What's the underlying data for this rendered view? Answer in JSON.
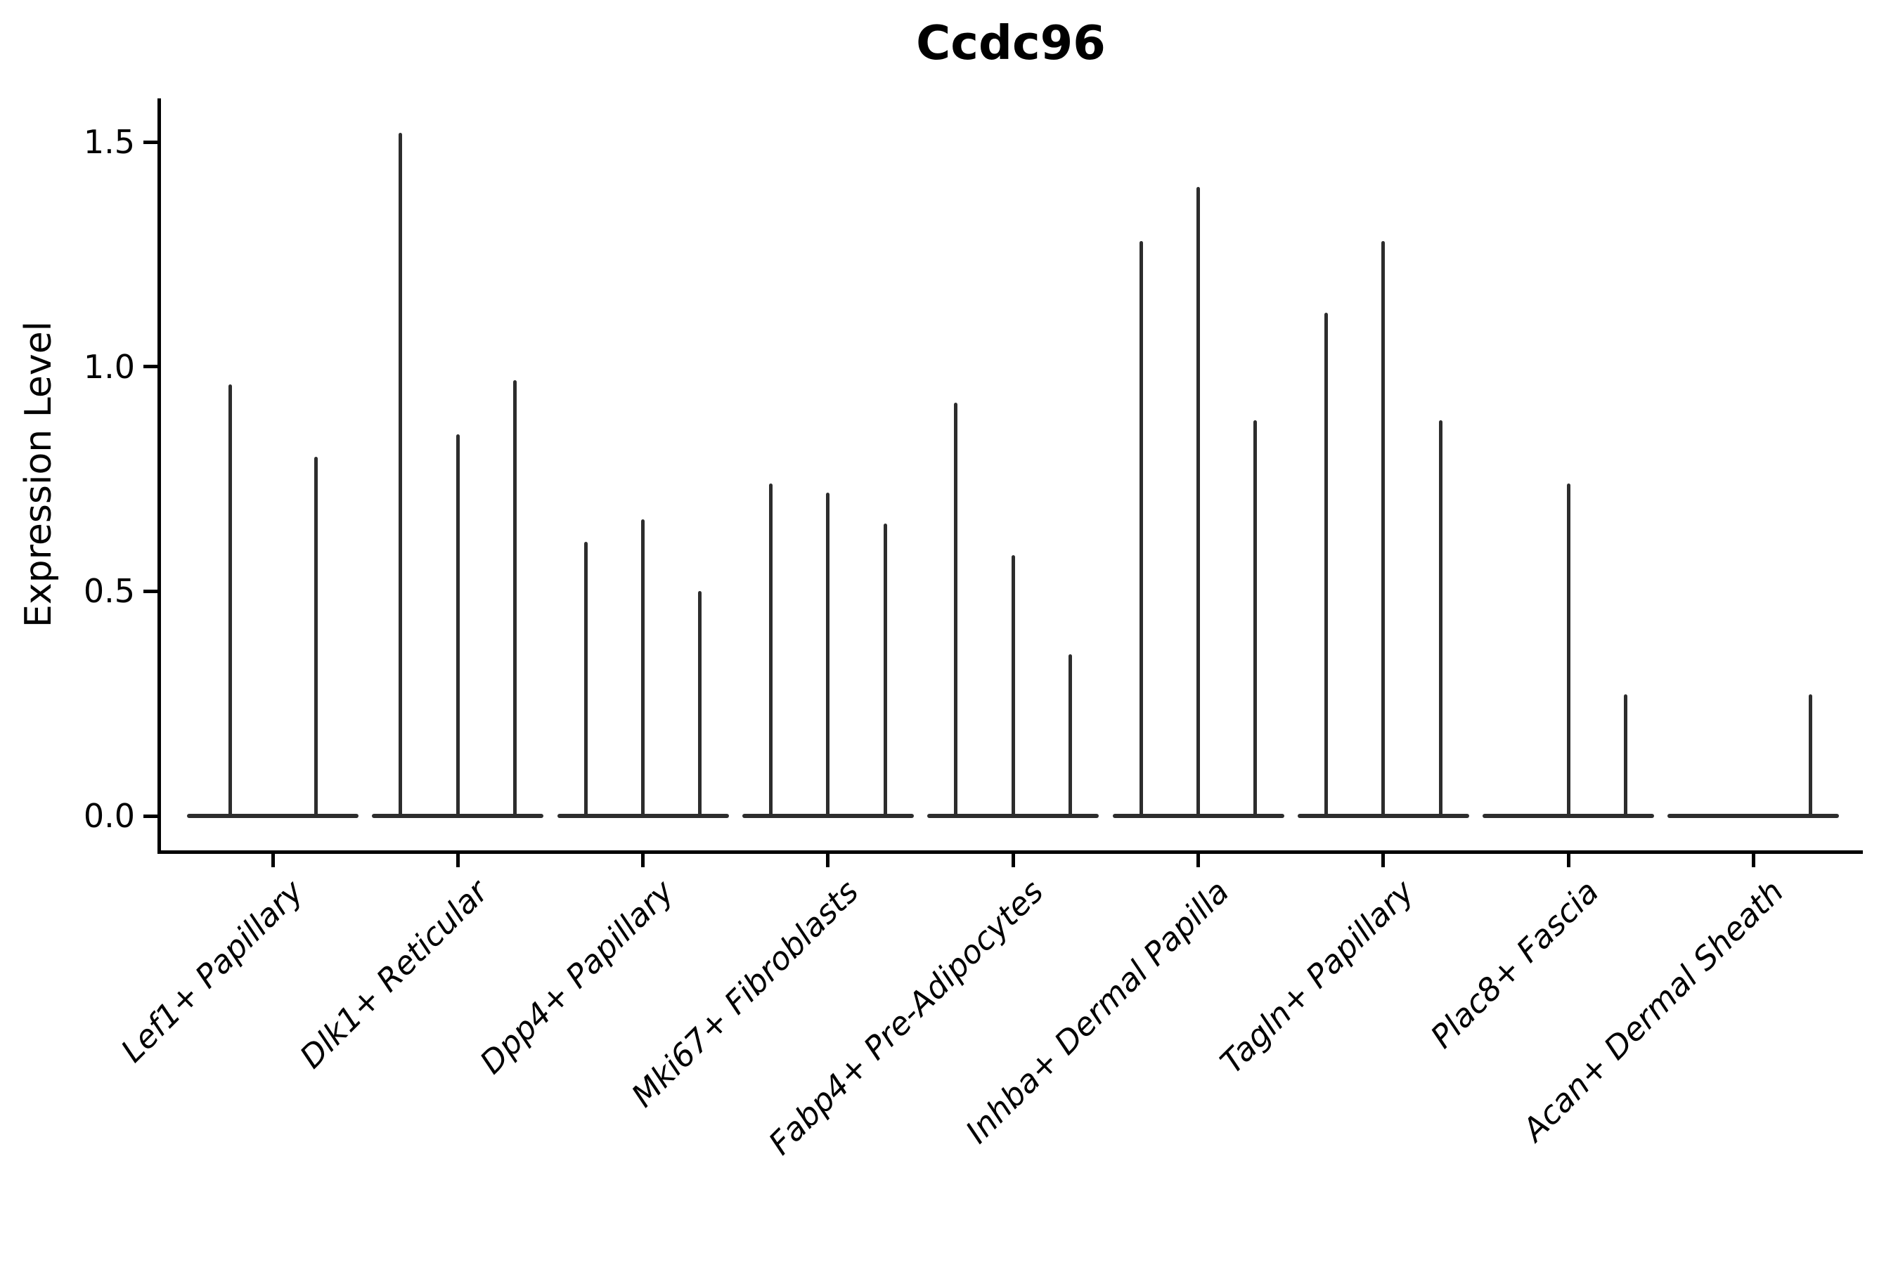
{
  "chart_data": {
    "type": "violin",
    "title": "Ccdc96",
    "ylabel": "Expression Level",
    "xlabel": "",
    "yticks": [
      0.0,
      0.5,
      1.0,
      1.5
    ],
    "yticklabels": [
      "0.0",
      "0.5",
      "1.0",
      "1.5"
    ],
    "ylim": [
      -0.08,
      1.6
    ],
    "grid": false,
    "legend": "none",
    "violin_color": "#2d2d2d",
    "axis_color": "#000000",
    "note": "Thin violin plots; each category shows narrow density spikes rising from a flat base at 0. Values are the peak (max) expression level of each violin; 0 means a flat violin with no spike.",
    "categories": [
      "Lef1+ Papillary",
      "Dlk1+ Reticular",
      "Dpp4+ Papillary",
      "Mki67+ Fibroblasts",
      "Fabp4+ Pre-Adipocytes",
      "Inhba+ Dermal Papilla",
      "Tagln+ Papillary",
      "Plac8+ Fascia",
      "Acan+ Dermal Sheath"
    ],
    "groups": [
      {
        "label": "Lef1+ Papillary",
        "violins": [
          0.96,
          0.8
        ]
      },
      {
        "label": "Dlk1+ Reticular",
        "violins": [
          1.52,
          0.85,
          0.97
        ]
      },
      {
        "label": "Dpp4+ Papillary",
        "violins": [
          0.61,
          0.66,
          0.5
        ]
      },
      {
        "label": "Mki67+ Fibroblasts",
        "violins": [
          0.74,
          0.72,
          0.65
        ]
      },
      {
        "label": "Fabp4+ Pre-Adipocytes",
        "violins": [
          0.92,
          0.58,
          0.36
        ]
      },
      {
        "label": "Inhba+ Dermal Papilla",
        "violins": [
          1.28,
          1.4,
          0.88
        ]
      },
      {
        "label": "Tagln+ Papillary",
        "violins": [
          1.12,
          1.28,
          0.88
        ]
      },
      {
        "label": "Plac8+ Fascia",
        "violins": [
          0,
          0.74,
          0.27
        ]
      },
      {
        "label": "Acan+ Dermal Sheath",
        "violins": [
          0,
          0,
          0.27
        ]
      }
    ]
  }
}
